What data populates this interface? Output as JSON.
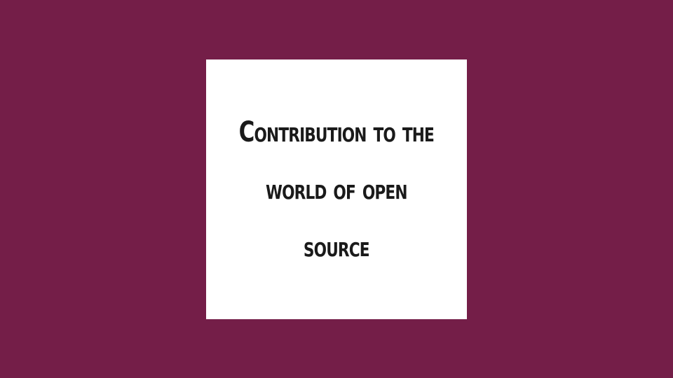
{
  "slide": {
    "background_color": "#741e48",
    "card_color": "#ffffff",
    "title_lines": [
      "Contribution to the",
      "world of open",
      "source"
    ]
  }
}
